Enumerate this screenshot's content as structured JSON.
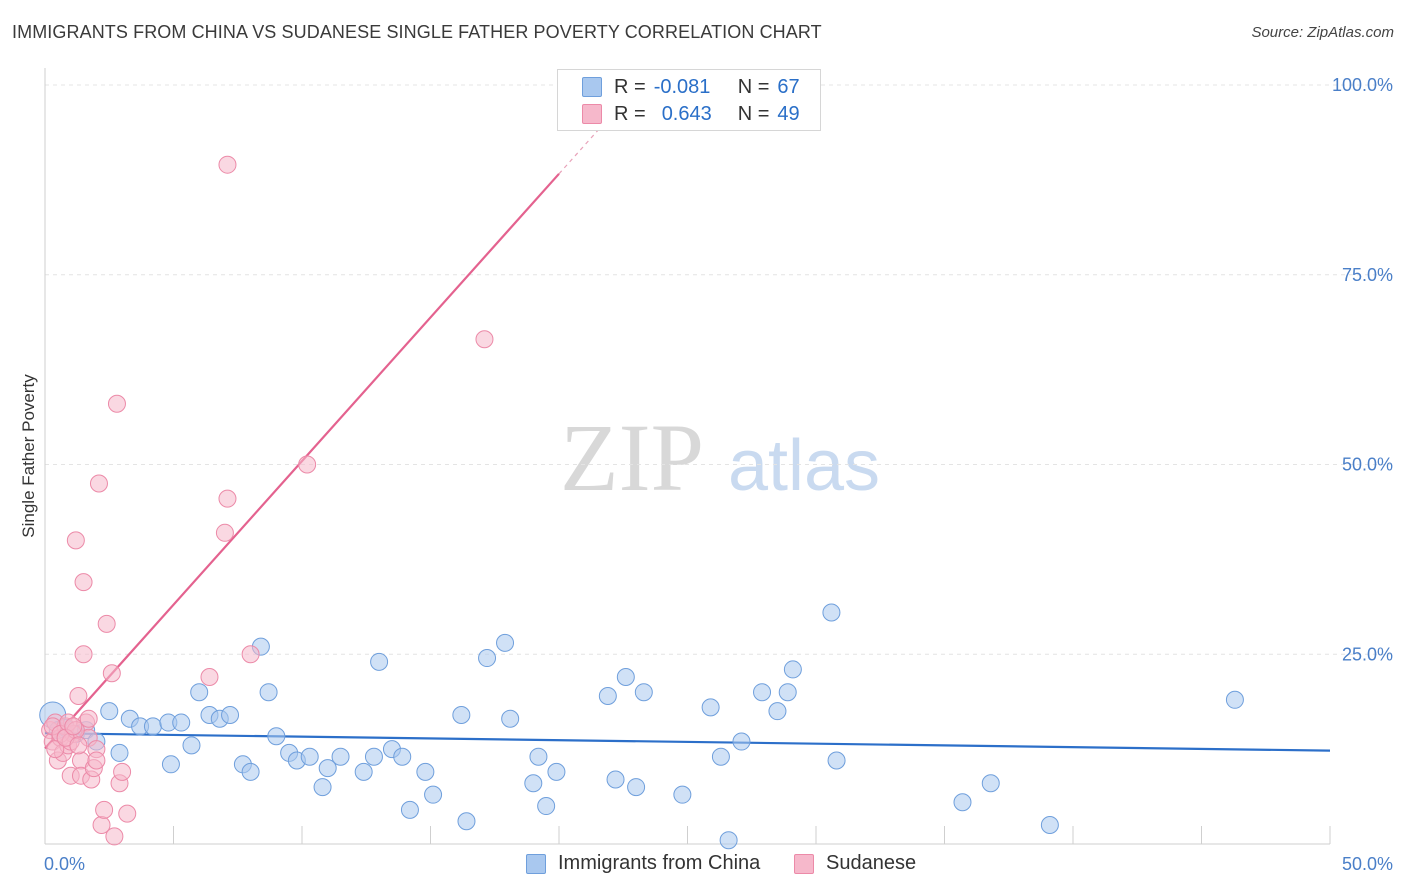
{
  "title": "IMMIGRANTS FROM CHINA VS SUDANESE SINGLE FATHER POVERTY CORRELATION CHART",
  "source": "Source: ZipAtlas.com",
  "watermark": {
    "zip": "ZIP",
    "atlas": "atlas"
  },
  "colors": {
    "china_fill": "#a9c8ef",
    "china_stroke": "#6f9fdc",
    "china_line": "#2c6fc9",
    "sudanese_fill": "#f6b8cb",
    "sudanese_stroke": "#ec8aa8",
    "sudanese_line": "#e4628f",
    "tick_text": "#4a7fc8",
    "grid": "#e4e4e4"
  },
  "legend": {
    "rows": [
      {
        "r_label": "R =",
        "r_value": "-0.081",
        "n_label": "N =",
        "n_value": "67"
      },
      {
        "r_label": "R =",
        "r_value": "0.643",
        "n_label": "N =",
        "n_value": "49"
      }
    ]
  },
  "bottom_legend": [
    "Immigrants from China",
    "Sudanese"
  ],
  "chart_data": {
    "type": "scatter",
    "title": "IMMIGRANTS FROM CHINA VS SUDANESE SINGLE FATHER POVERTY CORRELATION CHART",
    "xlabel": "",
    "ylabel": "Single Father Poverty",
    "xlim": [
      0,
      50
    ],
    "ylim": [
      0,
      100
    ],
    "x_tick_labels": [
      "0.0%",
      "50.0%"
    ],
    "y_ticks": [
      25,
      50,
      75,
      100
    ],
    "y_tick_labels": [
      "25.0%",
      "50.0%",
      "75.0%",
      "100.0%"
    ],
    "grid": "horizontal dashed",
    "legend_position": "top-center",
    "series": [
      {
        "name": "Immigrants from China",
        "r": -0.081,
        "n": 67,
        "trend": {
          "x": [
            0,
            50
          ],
          "y": [
            14.6,
            12.3
          ]
        },
        "points": [
          [
            0.3,
            17.0
          ],
          [
            0.5,
            15.0
          ],
          [
            0.8,
            15.3
          ],
          [
            1.2,
            14.5
          ],
          [
            1.6,
            15.0
          ],
          [
            2.0,
            13.5
          ],
          [
            2.5,
            17.5
          ],
          [
            2.9,
            12.0
          ],
          [
            3.3,
            16.5
          ],
          [
            3.7,
            15.5
          ],
          [
            4.2,
            15.5
          ],
          [
            4.8,
            16.0
          ],
          [
            4.9,
            10.5
          ],
          [
            5.3,
            16.0
          ],
          [
            5.7,
            13.0
          ],
          [
            6.0,
            20.0
          ],
          [
            6.4,
            17.0
          ],
          [
            6.8,
            16.5
          ],
          [
            7.2,
            17.0
          ],
          [
            7.7,
            10.5
          ],
          [
            8.0,
            9.5
          ],
          [
            8.4,
            26.0
          ],
          [
            8.7,
            20.0
          ],
          [
            9.0,
            14.2
          ],
          [
            9.5,
            12.0
          ],
          [
            9.8,
            11.0
          ],
          [
            10.3,
            11.5
          ],
          [
            10.8,
            7.5
          ],
          [
            11.0,
            10.0
          ],
          [
            11.5,
            11.5
          ],
          [
            12.4,
            9.5
          ],
          [
            12.8,
            11.5
          ],
          [
            13.0,
            24.0
          ],
          [
            13.5,
            12.5
          ],
          [
            13.9,
            11.5
          ],
          [
            14.2,
            4.5
          ],
          [
            14.8,
            9.5
          ],
          [
            15.1,
            6.5
          ],
          [
            16.2,
            17.0
          ],
          [
            16.4,
            3.0
          ],
          [
            17.2,
            24.5
          ],
          [
            17.9,
            26.5
          ],
          [
            18.1,
            16.5
          ],
          [
            19.0,
            8.0
          ],
          [
            19.2,
            11.5
          ],
          [
            19.5,
            5.0
          ],
          [
            19.9,
            9.5
          ],
          [
            21.9,
            19.5
          ],
          [
            22.2,
            8.5
          ],
          [
            22.6,
            22.0
          ],
          [
            23.0,
            7.5
          ],
          [
            23.3,
            20.0
          ],
          [
            24.8,
            6.5
          ],
          [
            25.9,
            18.0
          ],
          [
            26.3,
            11.5
          ],
          [
            26.6,
            0.5
          ],
          [
            27.1,
            13.5
          ],
          [
            27.9,
            20.0
          ],
          [
            28.5,
            17.5
          ],
          [
            28.9,
            20.0
          ],
          [
            29.1,
            23.0
          ],
          [
            30.6,
            30.5
          ],
          [
            30.8,
            11.0
          ],
          [
            35.7,
            5.5
          ],
          [
            36.8,
            8.0
          ],
          [
            39.1,
            2.5
          ],
          [
            46.3,
            19.0
          ]
        ]
      },
      {
        "name": "Sudanese",
        "r": 0.643,
        "n": 49,
        "trend": {
          "x": [
            0,
            20
          ],
          "y": [
            12.6,
            88.3
          ]
        },
        "points": [
          [
            0.2,
            15.0
          ],
          [
            0.3,
            13.5
          ],
          [
            0.4,
            16.0
          ],
          [
            0.5,
            11.0
          ],
          [
            0.6,
            14.0
          ],
          [
            0.7,
            12.0
          ],
          [
            0.8,
            15.5
          ],
          [
            0.9,
            13.0
          ],
          [
            1.0,
            9.0
          ],
          [
            1.1,
            14.5
          ],
          [
            1.2,
            40.0
          ],
          [
            1.3,
            19.5
          ],
          [
            1.4,
            11.0
          ],
          [
            1.4,
            9.0
          ],
          [
            1.5,
            34.5
          ],
          [
            1.6,
            16.0
          ],
          [
            1.7,
            14.0
          ],
          [
            1.8,
            8.5
          ],
          [
            1.9,
            10.0
          ],
          [
            2.0,
            12.5
          ],
          [
            2.1,
            47.5
          ],
          [
            2.2,
            2.5
          ],
          [
            2.3,
            4.5
          ],
          [
            2.4,
            29.0
          ],
          [
            2.6,
            22.5
          ],
          [
            2.7,
            1.0
          ],
          [
            2.8,
            58.0
          ],
          [
            2.9,
            8.0
          ],
          [
            3.0,
            9.5
          ],
          [
            3.2,
            4.0
          ],
          [
            0.3,
            15.5
          ],
          [
            0.6,
            14.5
          ],
          [
            0.9,
            16.0
          ],
          [
            1.0,
            13.5
          ],
          [
            1.2,
            15.0
          ],
          [
            1.5,
            25.0
          ],
          [
            1.7,
            16.5
          ],
          [
            2.0,
            11.0
          ],
          [
            6.4,
            22.0
          ],
          [
            7.1,
            45.5
          ],
          [
            7.0,
            41.0
          ],
          [
            7.1,
            89.5
          ],
          [
            8.0,
            25.0
          ],
          [
            10.2,
            50.0
          ],
          [
            17.1,
            66.5
          ],
          [
            0.4,
            12.5
          ],
          [
            0.8,
            14.0
          ],
          [
            1.1,
            15.5
          ],
          [
            1.3,
            13.0
          ]
        ]
      }
    ]
  }
}
